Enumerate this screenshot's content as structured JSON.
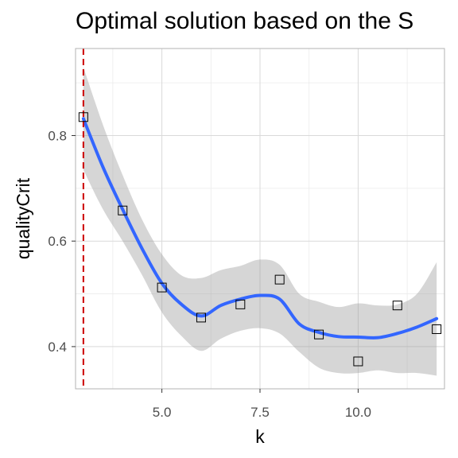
{
  "chart_data": {
    "type": "scatter",
    "title": "Optimal solution based on the S",
    "xlabel": "k",
    "ylabel": "qualityCrit",
    "xlim": [
      2.8,
      12.2
    ],
    "ylim": [
      0.32,
      0.965
    ],
    "x_ticks": [
      5.0,
      7.5,
      10.0
    ],
    "x_tick_labels": [
      "5.0",
      "7.5",
      "10.0"
    ],
    "y_ticks": [
      0.4,
      0.6,
      0.8
    ],
    "y_tick_labels": [
      "0.4",
      "0.6",
      "0.8"
    ],
    "grid": true,
    "points": [
      {
        "x": 3,
        "y": 0.835
      },
      {
        "x": 4,
        "y": 0.658
      },
      {
        "x": 5,
        "y": 0.512
      },
      {
        "x": 6,
        "y": 0.455
      },
      {
        "x": 7,
        "y": 0.48
      },
      {
        "x": 8,
        "y": 0.527
      },
      {
        "x": 9,
        "y": 0.423
      },
      {
        "x": 10,
        "y": 0.372
      },
      {
        "x": 11,
        "y": 0.478
      },
      {
        "x": 12,
        "y": 0.433
      }
    ],
    "smooth": [
      {
        "x": 3.0,
        "y": 0.832,
        "lo": 0.735,
        "hi": 0.93
      },
      {
        "x": 3.5,
        "y": 0.74,
        "lo": 0.66,
        "hi": 0.82
      },
      {
        "x": 4.0,
        "y": 0.66,
        "lo": 0.6,
        "hi": 0.725
      },
      {
        "x": 4.5,
        "y": 0.585,
        "lo": 0.535,
        "hi": 0.64
      },
      {
        "x": 5.0,
        "y": 0.52,
        "lo": 0.465,
        "hi": 0.575
      },
      {
        "x": 5.5,
        "y": 0.48,
        "lo": 0.42,
        "hi": 0.535
      },
      {
        "x": 6.0,
        "y": 0.458,
        "lo": 0.392,
        "hi": 0.53
      },
      {
        "x": 6.5,
        "y": 0.478,
        "lo": 0.415,
        "hi": 0.545
      },
      {
        "x": 7.0,
        "y": 0.49,
        "lo": 0.43,
        "hi": 0.553
      },
      {
        "x": 7.5,
        "y": 0.497,
        "lo": 0.435,
        "hi": 0.565
      },
      {
        "x": 8.0,
        "y": 0.49,
        "lo": 0.425,
        "hi": 0.555
      },
      {
        "x": 8.5,
        "y": 0.443,
        "lo": 0.39,
        "hi": 0.5
      },
      {
        "x": 9.0,
        "y": 0.427,
        "lo": 0.36,
        "hi": 0.485
      },
      {
        "x": 9.5,
        "y": 0.419,
        "lo": 0.35,
        "hi": 0.475
      },
      {
        "x": 10.0,
        "y": 0.418,
        "lo": 0.35,
        "hi": 0.482
      },
      {
        "x": 10.5,
        "y": 0.417,
        "lo": 0.355,
        "hi": 0.478
      },
      {
        "x": 11.0,
        "y": 0.425,
        "lo": 0.35,
        "hi": 0.48
      },
      {
        "x": 11.5,
        "y": 0.437,
        "lo": 0.35,
        "hi": 0.5
      },
      {
        "x": 12.0,
        "y": 0.453,
        "lo": 0.345,
        "hi": 0.56
      }
    ],
    "vline_x": 3,
    "colors": {
      "smooth_line": "#3366ff",
      "ribbon": "#999999",
      "vline": "#cc0000",
      "point_stroke": "#000000",
      "panel_border": "#b3b3b3",
      "grid_major": "#d9d9d9",
      "grid_minor": "#ebebeb"
    }
  }
}
